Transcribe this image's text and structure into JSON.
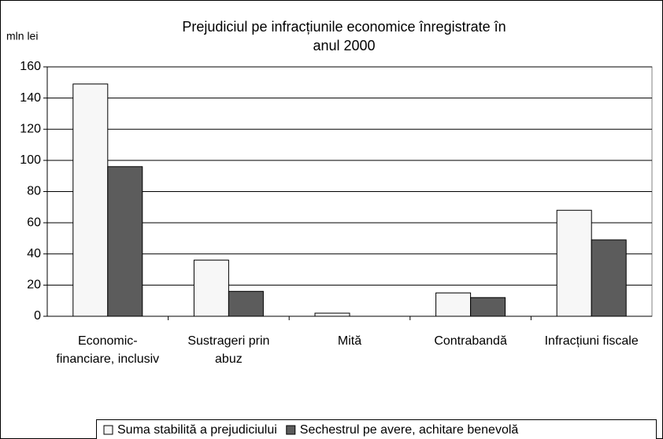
{
  "chart_data": {
    "type": "bar",
    "title": "Prejudiciul pe infracțiunile economice înregistrate în anul 2000",
    "y_label": "mln lei",
    "categories": [
      "Economic-financiare, inclusiv",
      "Sustrageri prin abuz",
      "Mită",
      "Contrabandă",
      "Infracțiuni fiscale"
    ],
    "series": [
      {
        "name": "Suma stabilită a prejudiciului",
        "color": "#f7f7f7",
        "values": [
          149,
          36,
          2,
          15,
          68
        ]
      },
      {
        "name": "Sechestrul pe avere, achitare benevolă",
        "color": "#5c5c5c",
        "values": [
          96,
          16,
          0,
          12,
          49
        ]
      }
    ],
    "ylim": [
      0,
      160
    ],
    "yticks": [
      0,
      20,
      40,
      60,
      80,
      100,
      120,
      140,
      160
    ],
    "grid": true,
    "legend": "bottom"
  }
}
